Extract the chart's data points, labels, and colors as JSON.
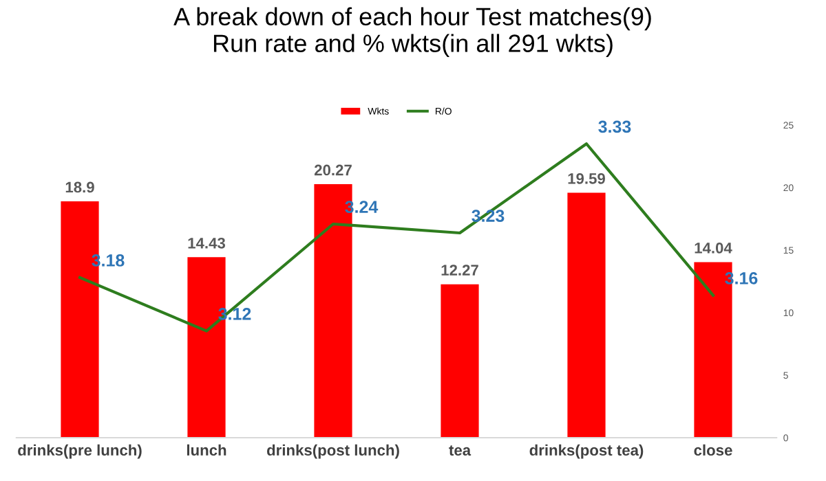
{
  "chart_data": {
    "type": "bar",
    "title": "A break down of each hour Test matches(9)\nRun rate and % wkts(in all 291 wkts)",
    "categories": [
      "drinks(pre lunch)",
      "lunch",
      "drinks(post lunch)",
      "tea",
      "drinks(post tea)",
      "close"
    ],
    "series": [
      {
        "name": "Wkts",
        "color": "#ff0000",
        "values": [
          18.9,
          14.43,
          20.27,
          12.27,
          19.59,
          14.04
        ]
      },
      {
        "name": "R/O",
        "type": "line",
        "axis": "y2",
        "color": "#2e7d1e",
        "values": [
          3.18,
          3.12,
          3.24,
          3.23,
          3.33,
          3.16
        ]
      }
    ],
    "ylim": [
      0,
      25
    ],
    "yticks": [
      0,
      5,
      10,
      15,
      20,
      25
    ],
    "tick_labels": "xy",
    "data_labels": true,
    "legend": "top",
    "grid": false,
    "marker": "none",
    "line_style": "solid"
  }
}
